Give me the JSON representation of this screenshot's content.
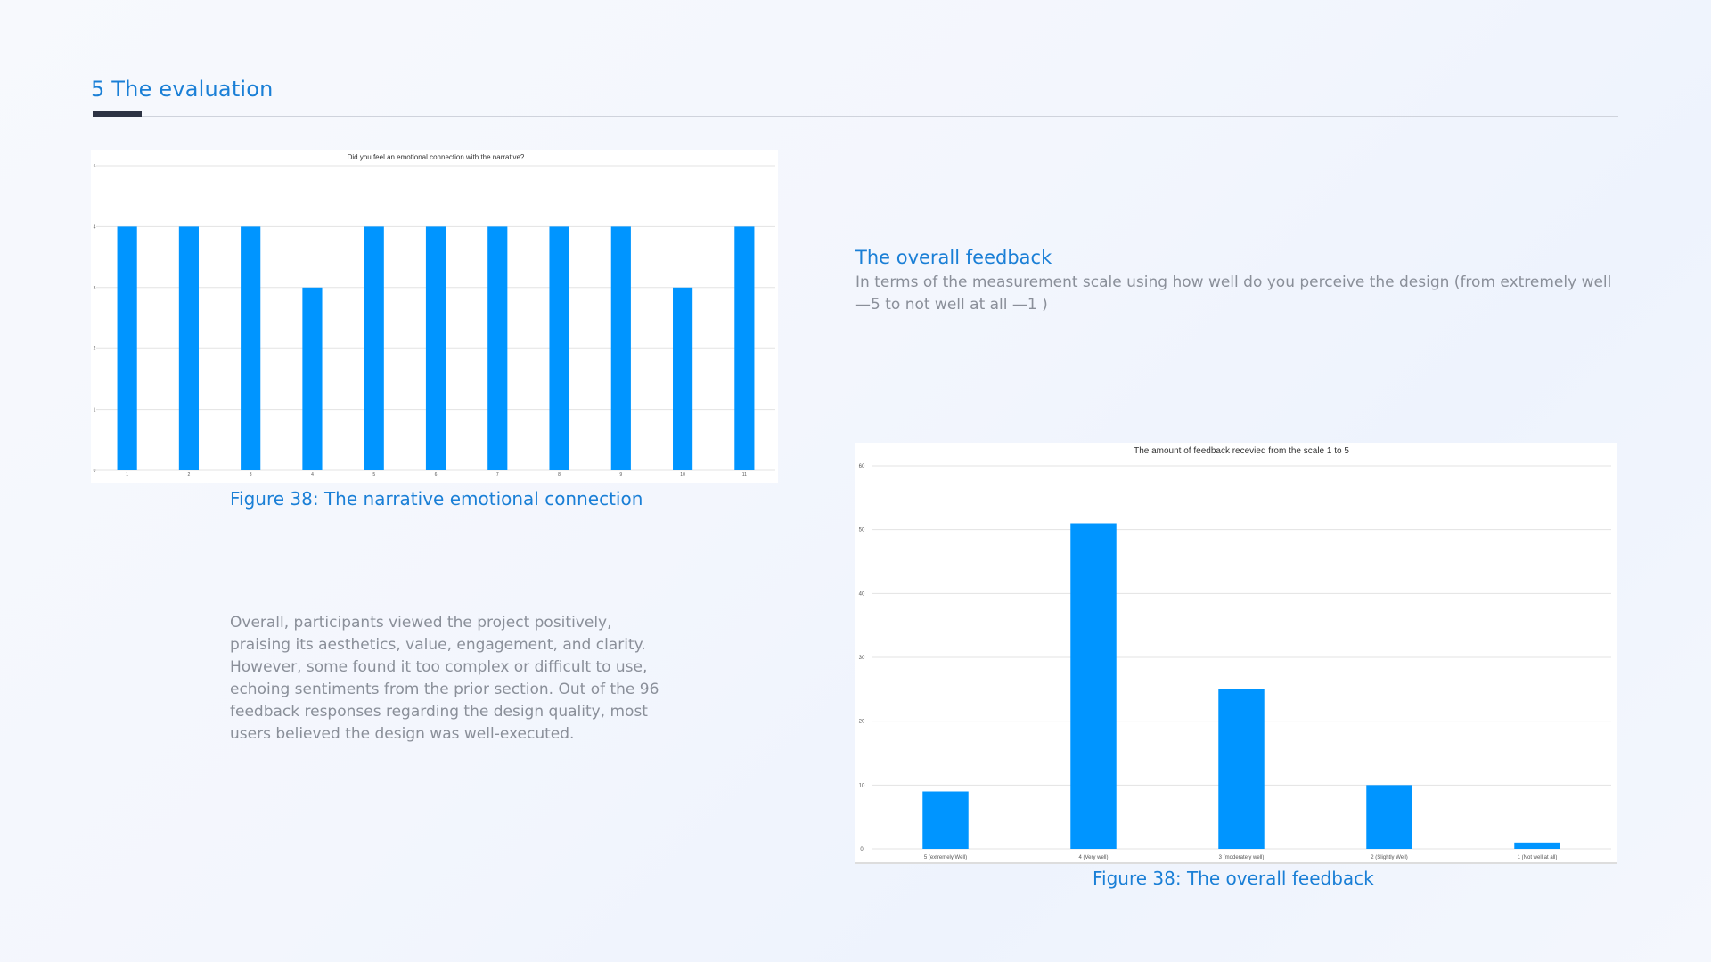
{
  "header": {
    "title": "5 The evaluation"
  },
  "section": {
    "heading": "The overall feedback",
    "description": "In terms of the measurement scale using how well do you perceive the design (from extremely well—5 to not well at all —1 )"
  },
  "body_text": "Overall, participants viewed the project positively, praising its aesthetics, value, engagement, and clarity. However, some found it too complex or difficult to use, echoing sentiments from the prior section. Out of the 96 feedback responses regarding the design quality, most users believed the design was well-executed.",
  "captions": {
    "chart1": "Figure 38: The narrative emotional connection",
    "chart2": "Figure 38:  The overall feedback"
  },
  "colors": {
    "bar": "#0095ff",
    "grid": "#e3e3e3",
    "accent": "#1a7fd6"
  },
  "chart_data": [
    {
      "type": "bar",
      "title": "Did you feel an emotional connection with the narrative?",
      "categories": [
        "1",
        "2",
        "3",
        "4",
        "5",
        "6",
        "7",
        "8",
        "9",
        "10",
        "11"
      ],
      "values": [
        4,
        4,
        4,
        3,
        4,
        4,
        4,
        4,
        4,
        3,
        4
      ],
      "yticks": [
        "0",
        "1",
        "2",
        "3",
        "4",
        "5"
      ],
      "ylim": [
        0,
        5
      ],
      "grid": true,
      "legend": "none"
    },
    {
      "type": "bar",
      "title": "The amount of feedback recevied from the scale 1 to 5",
      "categories": [
        "5 (extremely Well)",
        "4 (Very well)",
        "3 (moderately well)",
        "2 (Slightly Well)",
        "1 (Not well at all)"
      ],
      "values": [
        9,
        51,
        25,
        10,
        1
      ],
      "yticks": [
        "0",
        "10",
        "20",
        "30",
        "40",
        "50",
        "60"
      ],
      "ylim": [
        0,
        60
      ],
      "grid": true,
      "legend": "none"
    }
  ]
}
